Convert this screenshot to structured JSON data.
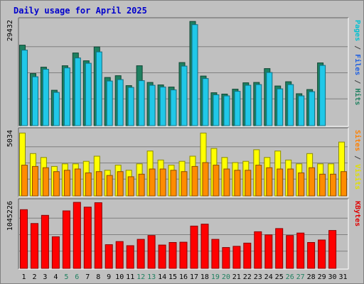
{
  "chart_data": {
    "type": "bar",
    "title": "Daily usage for April 2025",
    "days": [
      1,
      2,
      3,
      4,
      5,
      6,
      7,
      8,
      9,
      10,
      11,
      12,
      13,
      14,
      15,
      16,
      17,
      18,
      19,
      20,
      21,
      22,
      23,
      24,
      25,
      26,
      27,
      28,
      29,
      30,
      31
    ],
    "weekend_days": [
      5,
      6,
      12,
      13,
      19,
      20,
      26,
      27
    ],
    "panels": [
      {
        "id": "top",
        "max_label": "29432",
        "max": 29432,
        "side_label": [
          {
            "text": "Pages",
            "color": "#00c0d0"
          },
          {
            "text": " / ",
            "color": "#404040"
          },
          {
            "text": "Files",
            "color": "#2060e0"
          },
          {
            "text": " / ",
            "color": "#404040"
          },
          {
            "text": "Hits",
            "color": "#208060"
          }
        ],
        "series": [
          {
            "name": "Hits",
            "color": "#1e8060",
            "values": [
              22700,
              14700,
              16500,
              10000,
              16900,
              20500,
              18300,
              22200,
              13600,
              14100,
              11300,
              16900,
              12200,
              11500,
              10900,
              17800,
              29400,
              14000,
              9300,
              8900,
              10300,
              12100,
              12200,
              16100,
              11200,
              12400,
              9000,
              10200,
              17700,
              null,
              null
            ]
          },
          {
            "name": "Files",
            "color": "#20c8e8",
            "values": [
              21300,
              13800,
              15900,
              9400,
              16300,
              19100,
              17600,
              20800,
              12600,
              13000,
              10800,
              12700,
              11400,
              10900,
              10100,
              16800,
              28500,
              13300,
              8700,
              8400,
              9700,
              11400,
              11600,
              15000,
              10400,
              11600,
              8400,
              9600,
              17000,
              null,
              null
            ]
          }
        ]
      },
      {
        "id": "mid",
        "max_label": "5034",
        "max": 5034,
        "side_label": [
          {
            "text": "Sites",
            "color": "#ff8000"
          },
          {
            "text": " / ",
            "color": "#404040"
          },
          {
            "text": "Visits",
            "color": "#e0e000"
          }
        ],
        "series": [
          {
            "name": "Visits",
            "color": "#ffff00",
            "values": [
              4900,
              3300,
              3000,
              2300,
              2500,
              2500,
              2700,
              3100,
              2000,
              2400,
              2000,
              2500,
              3500,
              2800,
              2400,
              2700,
              3100,
              4900,
              3700,
              3000,
              2600,
              2700,
              3600,
              3000,
              3500,
              2800,
              2500,
              3300,
              2500,
              2500,
              4200
            ]
          },
          {
            "name": "Sites",
            "color": "#ff8c00",
            "values": [
              2400,
              2300,
              2200,
              1900,
              2000,
              2100,
              1800,
              1900,
              1600,
              1900,
              1500,
              1700,
              2100,
              2100,
              2000,
              1900,
              2300,
              2600,
              2400,
              2100,
              2000,
              2000,
              2400,
              2200,
              2100,
              2100,
              1800,
              2200,
              1700,
              1700,
              1900
            ]
          }
        ]
      },
      {
        "id": "bot",
        "max_label": "1045226",
        "max": 1045226,
        "side_label": [
          {
            "text": "KBytes",
            "color": "#e00000"
          }
        ],
        "series": [
          {
            "name": "KBytes",
            "color": "#ff0000",
            "values": [
              930000,
              710000,
              840000,
              500000,
              910000,
              1045000,
              970000,
              1040000,
              375000,
              425000,
              360000,
              460000,
              520000,
              370000,
              410000,
              415000,
              670000,
              700000,
              460000,
              330000,
              350000,
              400000,
              580000,
              530000,
              630000,
              520000,
              560000,
              410000,
              450000,
              600000,
              null
            ]
          }
        ]
      }
    ]
  }
}
